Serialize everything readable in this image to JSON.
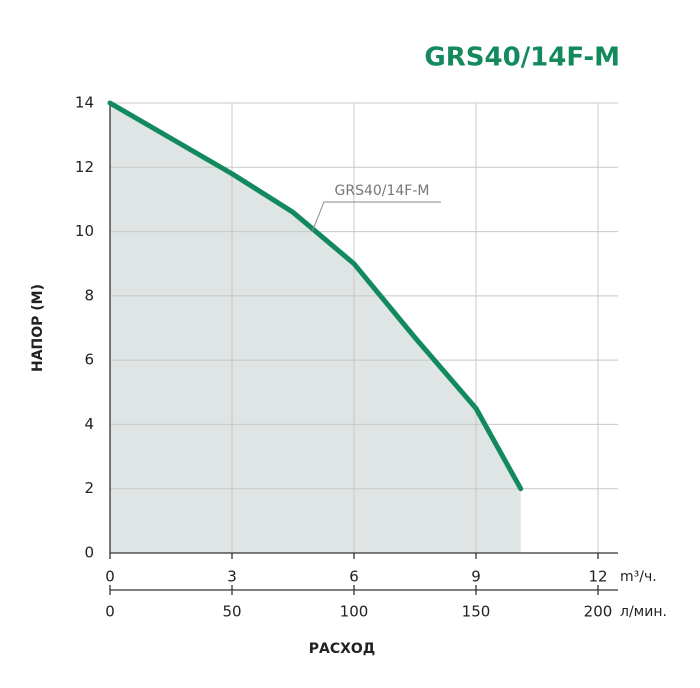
{
  "chart_data": {
    "type": "line",
    "title": "GRS40/14F-M",
    "x": [
      0,
      1.5,
      3,
      4.5,
      6,
      7.5,
      9,
      10.1
    ],
    "series": [
      {
        "name": "GRS40/14F-M",
        "color": "#128a5e",
        "values": [
          14,
          12.9,
          11.8,
          10.6,
          9.0,
          6.7,
          4.5,
          2.0
        ]
      }
    ],
    "area_color": "#dfe4e4",
    "xlim": [
      0,
      12
    ],
    "xticks": [
      0,
      3,
      6,
      9,
      12
    ],
    "x_unit": "m³/ч.",
    "x2lim": [
      0,
      200
    ],
    "x2ticks": [
      0,
      50,
      100,
      150,
      200
    ],
    "x2_unit": "л/мин.",
    "ylim": [
      0,
      14
    ],
    "yticks": [
      0,
      2,
      4,
      6,
      8,
      10,
      12,
      14
    ],
    "ylabel": "НАПОР (М)",
    "xlabel": "РАСХОД",
    "grid": true
  }
}
